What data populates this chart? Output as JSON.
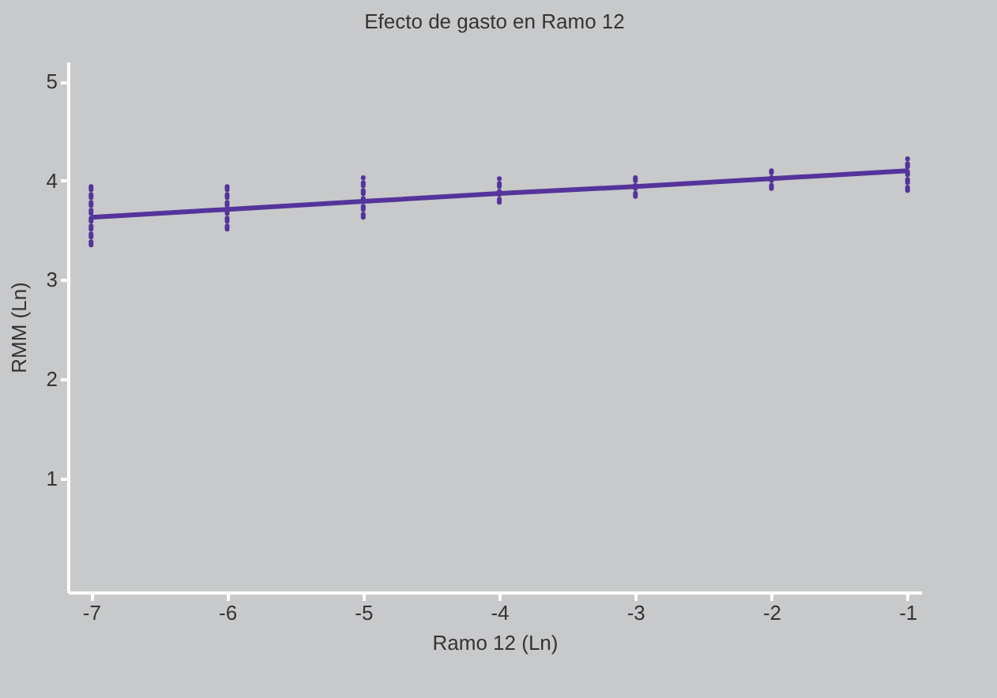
{
  "chart_data": {
    "type": "line",
    "title": "Efecto de gasto en Ramo 12",
    "xlabel": "Ramo 12 (Ln)",
    "ylabel": "RMM (Ln)",
    "x": [
      -7,
      -6,
      -5,
      -4,
      -3,
      -2,
      -1
    ],
    "series": [
      {
        "color": "#54349a",
        "values": [
          3.63,
          3.71,
          3.79,
          3.87,
          3.94,
          4.02,
          4.1
        ],
        "errors": [
          [
            3.35,
            3.97
          ],
          [
            3.51,
            3.97
          ],
          [
            3.63,
            4.03
          ],
          [
            3.78,
            4.02
          ],
          [
            3.84,
            4.03
          ],
          [
            3.92,
            4.1
          ],
          [
            3.9,
            4.22
          ]
        ]
      }
    ],
    "xlim": [
      -7.17,
      -0.9
    ],
    "ylim": [
      -0.15,
      5.2
    ],
    "xticks": [
      -7,
      -6,
      -5,
      -4,
      -3,
      -2,
      -1
    ],
    "yticks": [
      1,
      2,
      3,
      4,
      5
    ],
    "grid": false,
    "marker": "none",
    "line_style": "solid"
  }
}
